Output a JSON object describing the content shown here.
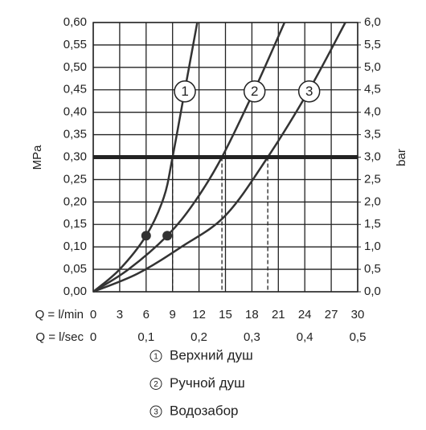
{
  "chart_data": {
    "type": "line",
    "x_label": "Q = l/min",
    "x2_label": "Q = l/sec",
    "y_label": "MPa",
    "y2_label": "bar",
    "xlim": [
      0,
      30
    ],
    "xticks": [
      0,
      3,
      6,
      9,
      12,
      15,
      18,
      21,
      24,
      27,
      30
    ],
    "x2lim": [
      0,
      0.5
    ],
    "x2ticks": [
      0,
      {
        "value": 0.1,
        "label": "0,1"
      },
      {
        "value": 0.2,
        "label": "0,2"
      },
      {
        "value": 0.3,
        "label": "0,3"
      },
      {
        "value": 0.4,
        "label": "0,4"
      },
      {
        "value": 0.5,
        "label": "0,5"
      }
    ],
    "ylim": [
      0,
      0.6
    ],
    "yticks": [
      {
        "value": 0,
        "label": "0,00"
      },
      {
        "value": 0.05,
        "label": "0,05"
      },
      {
        "value": 0.1,
        "label": "0,10"
      },
      {
        "value": 0.15,
        "label": "0,15"
      },
      {
        "value": 0.2,
        "label": "0,20"
      },
      {
        "value": 0.25,
        "label": "0,25"
      },
      {
        "value": 0.3,
        "label": "0,30"
      },
      {
        "value": 0.35,
        "label": "0,35"
      },
      {
        "value": 0.4,
        "label": "0,40"
      },
      {
        "value": 0.45,
        "label": "0,45"
      },
      {
        "value": 0.5,
        "label": "0,50"
      },
      {
        "value": 0.55,
        "label": "0,55"
      },
      {
        "value": 0.6,
        "label": "0,60"
      }
    ],
    "y2lim": [
      0,
      6
    ],
    "y2ticks": [
      {
        "value": 0,
        "label": "0,0"
      },
      {
        "value": 0.5,
        "label": "0,5"
      },
      {
        "value": 1,
        "label": "1,0"
      },
      {
        "value": 1.5,
        "label": "1,5"
      },
      {
        "value": 2,
        "label": "2,0"
      },
      {
        "value": 2.5,
        "label": "2,5"
      },
      {
        "value": 3,
        "label": "3,0"
      },
      {
        "value": 3.5,
        "label": "3,5"
      },
      {
        "value": 4,
        "label": "4,0"
      },
      {
        "value": 4.5,
        "label": "4,5"
      },
      {
        "value": 5,
        "label": "5,0"
      },
      {
        "value": 5.5,
        "label": "5,5"
      },
      {
        "value": 6,
        "label": "6,0"
      }
    ],
    "grid": true,
    "reference_line": 0.3,
    "series": [
      {
        "name": "Верхний душ",
        "label": "1",
        "color": "#333333",
        "x": [
          0,
          3,
          6,
          8,
          9,
          10.4,
          11.8
        ],
        "values": [
          0,
          0.05,
          0.125,
          0.21,
          0.3,
          0.45,
          0.6
        ]
      },
      {
        "name": "Ручной душ",
        "label": "2",
        "color": "#333333",
        "x": [
          0,
          4,
          8.4,
          11.5,
          14.6,
          18.3,
          21.7
        ],
        "values": [
          0,
          0.05,
          0.125,
          0.2,
          0.3,
          0.45,
          0.6
        ]
      },
      {
        "name": "Водозабор",
        "label": "3",
        "color": "#333333",
        "x": [
          0,
          5,
          10,
          15,
          19.8,
          24.5,
          28.6
        ],
        "values": [
          0,
          0.04,
          0.1,
          0.17,
          0.3,
          0.45,
          0.6
        ]
      }
    ],
    "points": {
      "x": [
        6,
        8.4
      ],
      "values": [
        0.125,
        0.125
      ],
      "color": "#333333"
    }
  }
}
